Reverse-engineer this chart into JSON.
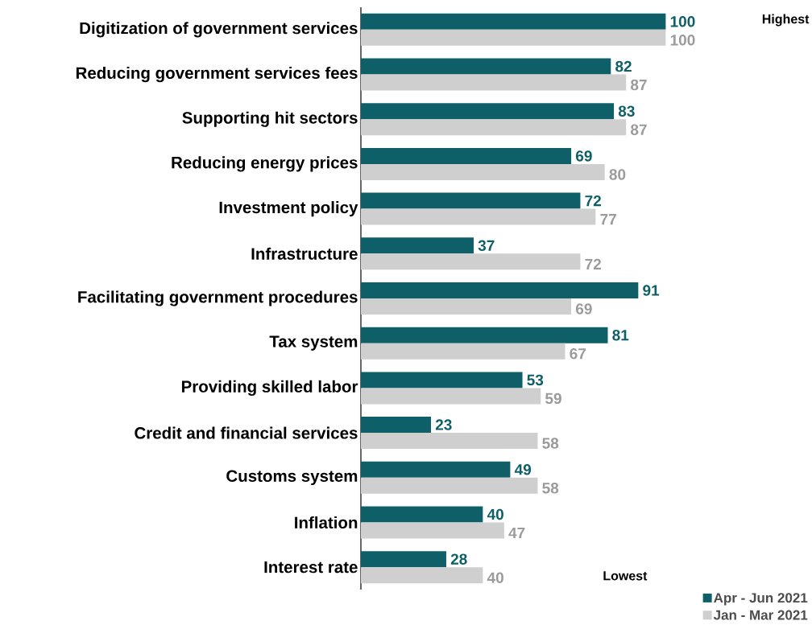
{
  "chart_data": {
    "type": "bar",
    "orientation": "horizontal",
    "data_labels": true,
    "legend": "bottom right",
    "categories": [
      "Digitization of government services",
      "Reducing government services fees",
      "Supporting hit sectors",
      "Reducing energy prices",
      "Investment policy",
      "Infrastructure",
      "Facilitating government procedures",
      "Tax system",
      "Providing skilled labor",
      "Credit and financial services",
      "Customs system",
      "Inflation",
      "Interest rate"
    ],
    "series": [
      {
        "name": "Apr - Jun 2021",
        "color": "#0e5f68",
        "values": [
          100,
          82,
          83,
          69,
          72,
          37,
          91,
          81,
          53,
          23,
          49,
          40,
          28
        ]
      },
      {
        "name": "Jan - Mar 2021",
        "color": "#d0cfcf",
        "values": [
          100,
          87,
          87,
          80,
          77,
          72,
          69,
          67,
          59,
          58,
          58,
          47,
          40
        ]
      }
    ],
    "annotations": [
      "Highest",
      "Lowest"
    ]
  }
}
